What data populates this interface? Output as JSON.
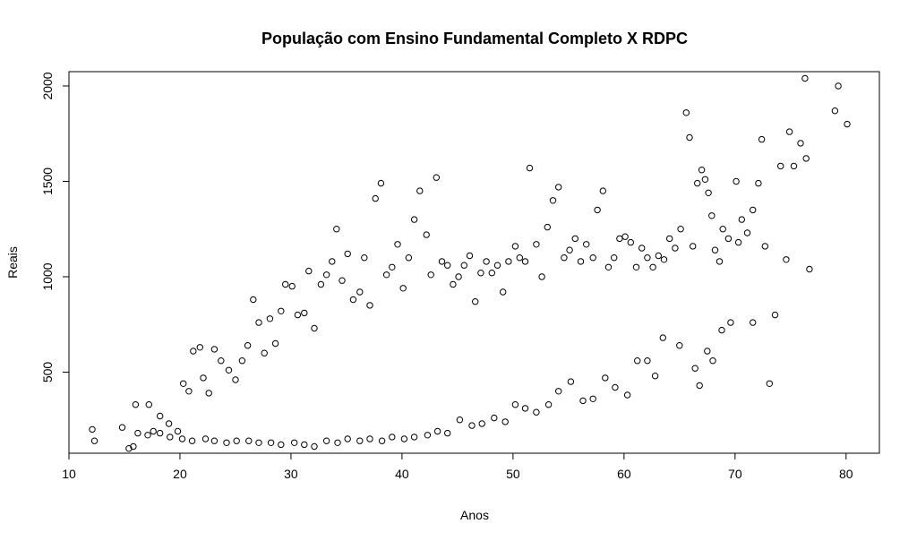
{
  "chart_data": {
    "type": "scatter",
    "title": "População com Ensino Fundamental Completo X RDPC",
    "xlabel": "Anos",
    "ylabel": "Reais",
    "xlim": [
      10,
      83
    ],
    "ylim": [
      75,
      2075
    ],
    "x_ticks": [
      10,
      20,
      30,
      40,
      50,
      60,
      70,
      80
    ],
    "y_ticks": [
      500,
      1000,
      1500,
      2000
    ],
    "x_tick_labels": [
      "10",
      "20",
      "30",
      "40",
      "50",
      "60",
      "70",
      "80"
    ],
    "y_tick_labels": [
      "500",
      "1000",
      "1500",
      "2000"
    ],
    "grid": false,
    "legend": "none",
    "marker": "open-circle",
    "marker_color": "#000000",
    "series": [
      {
        "points": [
          [
            12.1,
            200
          ],
          [
            12.3,
            140
          ],
          [
            14.8,
            210
          ],
          [
            15.4,
            100
          ],
          [
            15.8,
            110
          ],
          [
            16.0,
            330
          ],
          [
            16.2,
            180
          ],
          [
            17.2,
            330
          ],
          [
            17.6,
            190
          ],
          [
            18.2,
            270
          ],
          [
            19.0,
            230
          ],
          [
            19.8,
            190
          ],
          [
            20.3,
            440
          ],
          [
            20.8,
            400
          ],
          [
            21.2,
            610
          ],
          [
            21.8,
            630
          ],
          [
            22.1,
            470
          ],
          [
            22.6,
            390
          ],
          [
            23.1,
            620
          ],
          [
            23.7,
            560
          ],
          [
            24.4,
            510
          ],
          [
            25.0,
            460
          ],
          [
            25.6,
            560
          ],
          [
            26.1,
            640
          ],
          [
            26.6,
            880
          ],
          [
            27.1,
            760
          ],
          [
            27.6,
            600
          ],
          [
            28.1,
            780
          ],
          [
            28.6,
            650
          ],
          [
            29.1,
            820
          ],
          [
            29.5,
            960
          ],
          [
            30.1,
            950
          ],
          [
            30.6,
            800
          ],
          [
            31.2,
            810
          ],
          [
            31.6,
            1030
          ],
          [
            32.1,
            730
          ],
          [
            32.7,
            960
          ],
          [
            33.2,
            1010
          ],
          [
            33.7,
            1080
          ],
          [
            34.1,
            1250
          ],
          [
            34.6,
            980
          ],
          [
            35.1,
            1120
          ],
          [
            35.6,
            880
          ],
          [
            36.2,
            920
          ],
          [
            36.6,
            1100
          ],
          [
            37.1,
            850
          ],
          [
            37.6,
            1410
          ],
          [
            38.1,
            1490
          ],
          [
            38.6,
            1010
          ],
          [
            39.1,
            1050
          ],
          [
            39.6,
            1170
          ],
          [
            40.1,
            940
          ],
          [
            40.6,
            1100
          ],
          [
            41.1,
            1300
          ],
          [
            41.6,
            1450
          ],
          [
            42.2,
            1220
          ],
          [
            42.6,
            1010
          ],
          [
            43.1,
            1520
          ],
          [
            43.6,
            1080
          ],
          [
            44.1,
            1060
          ],
          [
            44.6,
            960
          ],
          [
            45.1,
            1000
          ],
          [
            45.6,
            1060
          ],
          [
            46.1,
            1110
          ],
          [
            46.6,
            870
          ],
          [
            47.1,
            1020
          ],
          [
            47.6,
            1080
          ],
          [
            48.1,
            1020
          ],
          [
            48.6,
            1060
          ],
          [
            49.1,
            920
          ],
          [
            49.6,
            1080
          ],
          [
            50.2,
            1160
          ],
          [
            50.6,
            1100
          ],
          [
            51.1,
            1080
          ],
          [
            51.5,
            1570
          ],
          [
            52.1,
            1170
          ],
          [
            52.6,
            1000
          ],
          [
            53.1,
            1260
          ],
          [
            53.6,
            1400
          ],
          [
            54.1,
            1470
          ],
          [
            54.6,
            1100
          ],
          [
            55.1,
            1140
          ],
          [
            55.6,
            1200
          ],
          [
            56.1,
            1080
          ],
          [
            56.6,
            1170
          ],
          [
            57.2,
            1100
          ],
          [
            57.6,
            1350
          ],
          [
            58.1,
            1450
          ],
          [
            58.6,
            1050
          ],
          [
            59.1,
            1100
          ],
          [
            59.6,
            1200
          ],
          [
            60.1,
            1210
          ],
          [
            60.6,
            1180
          ],
          [
            61.1,
            1050
          ],
          [
            61.6,
            1150
          ],
          [
            62.1,
            1100
          ],
          [
            62.6,
            1050
          ],
          [
            63.1,
            1110
          ],
          [
            63.6,
            1090
          ],
          [
            64.1,
            1200
          ],
          [
            64.6,
            1150
          ],
          [
            65.1,
            1250
          ],
          [
            65.6,
            1860
          ],
          [
            65.9,
            1730
          ],
          [
            66.2,
            1160
          ],
          [
            66.6,
            1490
          ],
          [
            67.0,
            1560
          ],
          [
            67.3,
            1510
          ],
          [
            67.6,
            1440
          ],
          [
            67.9,
            1320
          ],
          [
            68.2,
            1140
          ],
          [
            68.6,
            1080
          ],
          [
            68.9,
            1250
          ],
          [
            69.4,
            1200
          ],
          [
            70.1,
            1500
          ],
          [
            70.3,
            1180
          ],
          [
            70.6,
            1300
          ],
          [
            71.1,
            1230
          ],
          [
            71.6,
            1350
          ],
          [
            72.1,
            1490
          ],
          [
            72.4,
            1720
          ],
          [
            72.7,
            1160
          ],
          [
            73.1,
            440
          ],
          [
            73.6,
            800
          ],
          [
            74.1,
            1580
          ],
          [
            74.6,
            1090
          ],
          [
            74.9,
            1760
          ],
          [
            75.3,
            1580
          ],
          [
            75.9,
            1700
          ],
          [
            76.3,
            2040
          ],
          [
            76.4,
            1620
          ],
          [
            76.7,
            1040
          ],
          [
            79.0,
            1870
          ],
          [
            79.3,
            2000
          ],
          [
            80.1,
            1800
          ],
          [
            66.8,
            430
          ],
          [
            67.5,
            610
          ],
          [
            68.0,
            560
          ],
          [
            68.8,
            720
          ],
          [
            69.6,
            760
          ],
          [
            71.6,
            760
          ],
          [
            66.4,
            520
          ],
          [
            65.0,
            640
          ],
          [
            63.5,
            680
          ],
          [
            62.8,
            480
          ],
          [
            62.1,
            560
          ],
          [
            61.2,
            560
          ],
          [
            60.3,
            380
          ],
          [
            59.2,
            420
          ],
          [
            58.3,
            470
          ],
          [
            57.2,
            360
          ],
          [
            56.3,
            350
          ],
          [
            55.2,
            450
          ],
          [
            54.1,
            400
          ],
          [
            53.2,
            330
          ],
          [
            52.1,
            290
          ],
          [
            51.1,
            310
          ],
          [
            50.2,
            330
          ],
          [
            49.3,
            240
          ],
          [
            48.3,
            260
          ],
          [
            47.2,
            230
          ],
          [
            46.3,
            220
          ],
          [
            45.2,
            250
          ],
          [
            44.1,
            180
          ],
          [
            43.2,
            190
          ],
          [
            42.3,
            170
          ],
          [
            41.1,
            160
          ],
          [
            40.2,
            150
          ],
          [
            39.1,
            160
          ],
          [
            38.2,
            140
          ],
          [
            37.1,
            150
          ],
          [
            36.2,
            140
          ],
          [
            35.1,
            150
          ],
          [
            34.2,
            130
          ],
          [
            33.2,
            140
          ],
          [
            32.1,
            110
          ],
          [
            31.2,
            120
          ],
          [
            30.3,
            130
          ],
          [
            29.1,
            120
          ],
          [
            28.2,
            130
          ],
          [
            27.1,
            130
          ],
          [
            26.2,
            140
          ],
          [
            25.1,
            140
          ],
          [
            24.2,
            130
          ],
          [
            23.1,
            140
          ],
          [
            22.3,
            150
          ],
          [
            21.1,
            140
          ],
          [
            20.2,
            150
          ],
          [
            19.1,
            160
          ],
          [
            18.2,
            180
          ],
          [
            17.1,
            170
          ]
        ]
      }
    ]
  }
}
